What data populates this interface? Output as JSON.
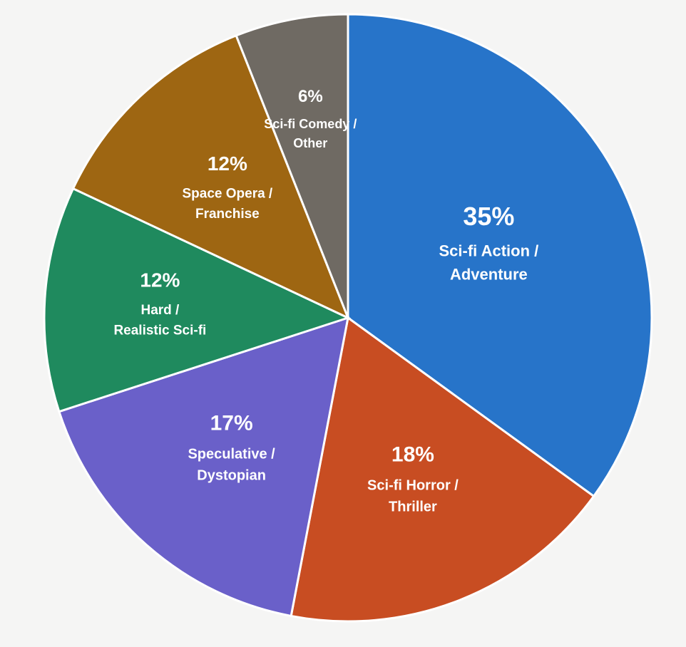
{
  "chart_data": {
    "type": "pie",
    "title": "",
    "start_angle_deg": 0,
    "direction": "clockwise",
    "slices": [
      {
        "label_lines": [
          "Sci-fi Action /",
          "Adventure"
        ],
        "value": 35,
        "display": "35%",
        "color": "#2774c9"
      },
      {
        "label_lines": [
          "Sci-fi Horror /",
          "Thriller"
        ],
        "value": 18,
        "display": "18%",
        "color": "#c84d22"
      },
      {
        "label_lines": [
          "Speculative /",
          "Dystopian"
        ],
        "value": 17,
        "display": "17%",
        "color": "#6a60c9"
      },
      {
        "label_lines": [
          "Hard /",
          "Realistic Sci-fi"
        ],
        "value": 12,
        "display": "12%",
        "color": "#1f8a5e"
      },
      {
        "label_lines": [
          "Space Opera /",
          "Franchise"
        ],
        "value": 12,
        "display": "12%",
        "color": "#9e6612"
      },
      {
        "label_lines": [
          "Sci-fi Comedy /",
          "Other"
        ],
        "value": 6,
        "display": "6%",
        "color": "#6f6a63"
      }
    ]
  }
}
